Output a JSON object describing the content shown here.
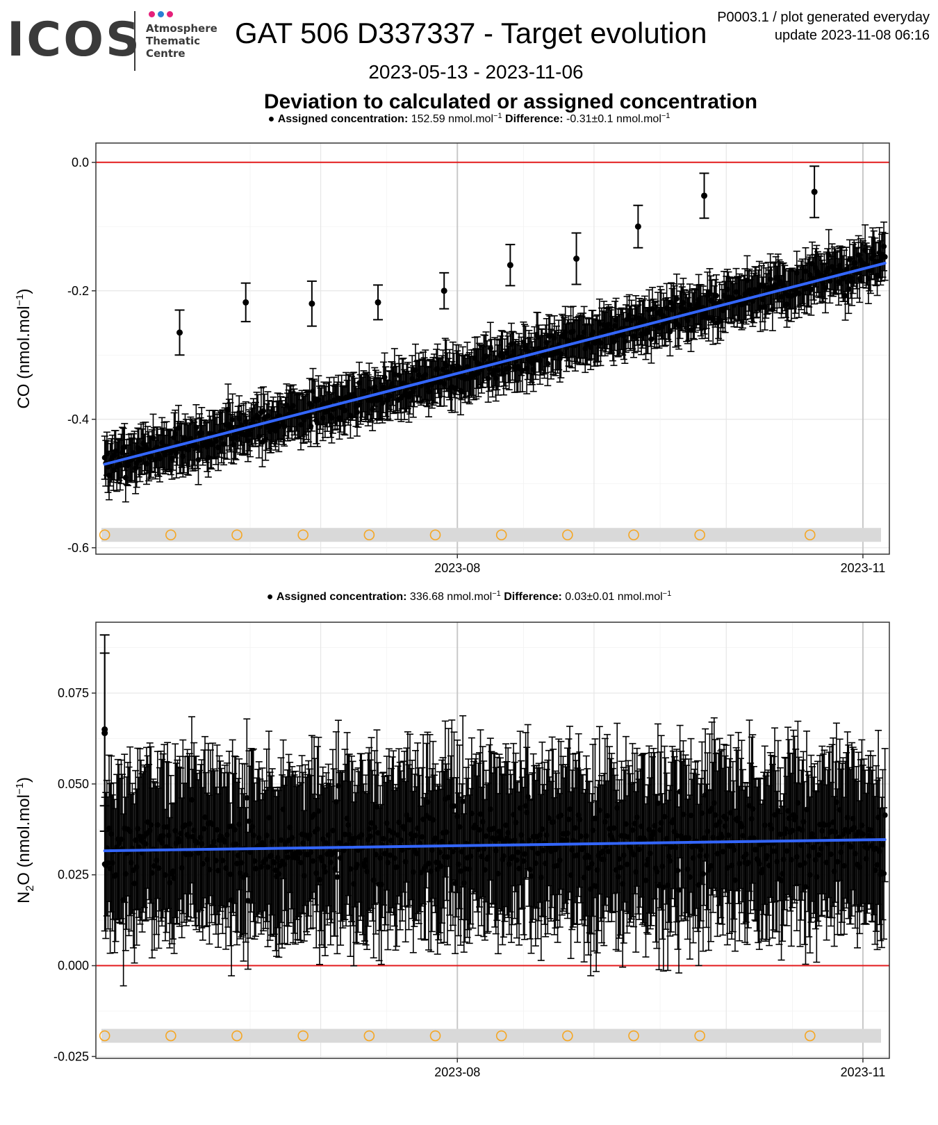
{
  "header": {
    "logo_text": "ICOS",
    "logo_sub": [
      "Atmosphere",
      "Thematic",
      "Centre"
    ],
    "title": "GAT 506 D337337 - Target evolution",
    "corner_line1": "P0003.1 / plot generated everyday",
    "corner_line2": "update  2023-11-08 06:16",
    "date_range": "2023-05-13 - 2023-11-06",
    "subtitle": "Deviation to calculated or assigned concentration"
  },
  "colors": {
    "points": "#000000",
    "trend": "#3366ff",
    "zero_line": "#e31a1c",
    "marker_band": "#d9d9d9",
    "markers": "#f5a623",
    "logo_dots": [
      "#e5207a",
      "#2a7fd4",
      "#e5207a"
    ]
  },
  "chart_data": [
    {
      "type": "scatter",
      "species": "CO",
      "ylabel": "CO (nmol.mol⁻¹)",
      "ylabel_main": "CO (nmol.mol",
      "ylabel_sup": "−1",
      "ylabel_end": ")",
      "info": {
        "assigned_label": "Assigned concentration:",
        "assigned_value": "152.59 nmol.mol",
        "difference_label": "Difference:",
        "difference_value": "-0.31±0.1 nmol.mol",
        "unit_sup": "−1"
      },
      "xlim": [
        "2023-05-11",
        "2023-11-07"
      ],
      "ylim": [
        -0.61,
        0.03
      ],
      "yticks": [
        0.0,
        -0.2,
        -0.4,
        -0.6
      ],
      "ytick_labels": [
        "0.0",
        "-0.2",
        "-0.4",
        "-0.6"
      ],
      "xticks": [
        "2023-08-01",
        "2023-11-01"
      ],
      "xtick_labels": [
        "2023-08",
        "2023-11"
      ],
      "zero_line": 0.0,
      "trend": {
        "start": {
          "x": "2023-05-13",
          "y": -0.47
        },
        "end": {
          "x": "2023-11-06",
          "y": -0.157
        }
      },
      "noise": {
        "sd": 0.022,
        "err": 0.035,
        "points_per_day": 4
      },
      "outliers": [
        {
          "x": "2023-05-30",
          "y": -0.265,
          "err": 0.035
        },
        {
          "x": "2023-06-14",
          "y": -0.218,
          "err": 0.03
        },
        {
          "x": "2023-06-29",
          "y": -0.22,
          "err": 0.035
        },
        {
          "x": "2023-07-14",
          "y": -0.218,
          "err": 0.027
        },
        {
          "x": "2023-07-29",
          "y": -0.2,
          "err": 0.028
        },
        {
          "x": "2023-08-13",
          "y": -0.16,
          "err": 0.032
        },
        {
          "x": "2023-08-28",
          "y": -0.15,
          "err": 0.04
        },
        {
          "x": "2023-09-11",
          "y": -0.1,
          "err": 0.033
        },
        {
          "x": "2023-09-26",
          "y": -0.052,
          "err": 0.035
        },
        {
          "x": "2023-10-21",
          "y": -0.046,
          "err": 0.04
        }
      ],
      "marker_y": -0.58,
      "marker_dates": [
        "2023-05-13",
        "2023-05-28",
        "2023-06-12",
        "2023-06-27",
        "2023-07-12",
        "2023-07-27",
        "2023-08-11",
        "2023-08-26",
        "2023-09-10",
        "2023-09-25",
        "2023-10-20"
      ]
    },
    {
      "type": "scatter",
      "species": "N2O",
      "ylabel": "N₂O (nmol.mol⁻¹)",
      "ylabel_main": "N",
      "ylabel_sub": "2",
      "ylabel_mid": "O (nmol.mol",
      "ylabel_sup": "−1",
      "ylabel_end": ")",
      "info": {
        "assigned_label": "Assigned concentration:",
        "assigned_value": "336.68 nmol.mol",
        "difference_label": "Difference:",
        "difference_value": "0.03±0.01 nmol.mol",
        "unit_sup": "−1"
      },
      "xlim": [
        "2023-05-11",
        "2023-11-07"
      ],
      "ylim": [
        -0.0255,
        0.0945
      ],
      "yticks": [
        0.075,
        0.05,
        0.025,
        0.0,
        -0.025
      ],
      "ytick_labels": [
        "0.075",
        "0.050",
        "0.025",
        "0.000",
        "-0.025"
      ],
      "xticks": [
        "2023-08-01",
        "2023-11-01"
      ],
      "xtick_labels": [
        "2023-08",
        "2023-11"
      ],
      "zero_line": 0.0,
      "trend": {
        "start": {
          "x": "2023-05-13",
          "y": 0.0316
        },
        "end": {
          "x": "2023-11-06",
          "y": 0.0347
        }
      },
      "noise": {
        "sd": 0.0095,
        "err": 0.021,
        "points_per_day": 4
      },
      "outliers": [
        {
          "x": "2023-05-13",
          "y": 0.065,
          "err": 0.021
        },
        {
          "x": "2023-05-13",
          "y": 0.064,
          "err": 0.027
        }
      ],
      "marker_y": -0.0193,
      "marker_dates": [
        "2023-05-13",
        "2023-05-28",
        "2023-06-12",
        "2023-06-27",
        "2023-07-12",
        "2023-07-27",
        "2023-08-11",
        "2023-08-26",
        "2023-09-10",
        "2023-09-25",
        "2023-10-20"
      ]
    }
  ]
}
